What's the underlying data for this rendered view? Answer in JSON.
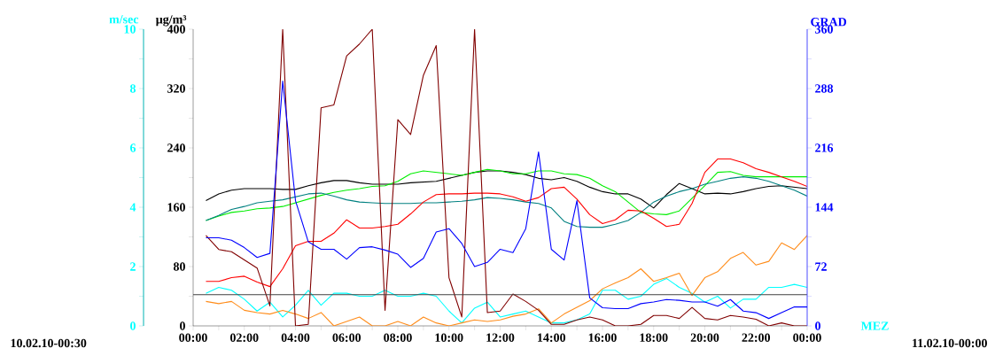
{
  "chart_data": {
    "type": "line",
    "xlabel": "MEZ",
    "ylabel": "µg/m³",
    "y2label": "GRAD",
    "y3label": "m/sec",
    "annotations": [
      "10.02.10-00:30",
      "11.02.10-00:00"
    ],
    "x": [
      0.5,
      1,
      1.5,
      2,
      2.5,
      3,
      3.5,
      4,
      4.5,
      5,
      5.5,
      6,
      6.5,
      7,
      7.5,
      8,
      8.5,
      9,
      9.5,
      10,
      10.5,
      11,
      11.5,
      12,
      12.5,
      13,
      13.5,
      14,
      14.5,
      15,
      15.5,
      16,
      16.5,
      17,
      17.5,
      18,
      18.5,
      19,
      19.5,
      20,
      20.5,
      21,
      21.5,
      22,
      22.5,
      23,
      23.5,
      24
    ],
    "xlim": [
      0,
      24
    ],
    "xticks": [
      {
        "value": 0,
        "label": "00:00"
      },
      {
        "value": 1,
        "label": null
      },
      {
        "value": 2,
        "label": "02:00"
      },
      {
        "value": 3,
        "label": null
      },
      {
        "value": 4,
        "label": "04:00"
      },
      {
        "value": 5,
        "label": null
      },
      {
        "value": 6,
        "label": "06:00"
      },
      {
        "value": 7,
        "label": null
      },
      {
        "value": 8,
        "label": "08:00"
      },
      {
        "value": 9,
        "label": null
      },
      {
        "value": 10,
        "label": "10:00"
      },
      {
        "value": 11,
        "label": null
      },
      {
        "value": 12,
        "label": "12:00"
      },
      {
        "value": 13,
        "label": null
      },
      {
        "value": 14,
        "label": "14:00"
      },
      {
        "value": 15,
        "label": null
      },
      {
        "value": 16,
        "label": "16:00"
      },
      {
        "value": 17,
        "label": null
      },
      {
        "value": 18,
        "label": "18:00"
      },
      {
        "value": 19,
        "label": null
      },
      {
        "value": 20,
        "label": "20:00"
      },
      {
        "value": 21,
        "label": null
      },
      {
        "value": 22,
        "label": "22:00"
      },
      {
        "value": 23,
        "label": null
      },
      {
        "value": 24,
        "label": "00:00"
      }
    ],
    "ylim": [
      0,
      400
    ],
    "yticks": [
      0,
      {
        "value": 40,
        "label": null
      },
      80,
      {
        "value": 120,
        "label": null
      },
      160,
      {
        "value": 200,
        "label": null
      },
      240,
      {
        "value": 280,
        "label": null
      },
      320,
      {
        "value": 360,
        "label": null
      },
      400
    ],
    "y2lim": [
      0,
      360
    ],
    "y2ticks": [
      0,
      {
        "value": 36,
        "label": null
      },
      72,
      {
        "value": 108,
        "label": null
      },
      144,
      {
        "value": 180,
        "label": null
      },
      216,
      {
        "value": 252,
        "label": null
      },
      288,
      {
        "value": 324,
        "label": null
      },
      360
    ],
    "y3lim": [
      0,
      10
    ],
    "y3ticks": [
      0,
      {
        "value": 1,
        "label": null
      },
      2,
      {
        "value": 3,
        "label": null
      },
      4,
      {
        "value": 5,
        "label": null
      },
      6,
      {
        "value": 7,
        "label": null
      },
      8,
      {
        "value": 9,
        "label": null
      },
      10
    ],
    "ref_lines": [
      {
        "axis": "y",
        "value": 42,
        "color": "#404040"
      }
    ],
    "series": [
      {
        "color": "#000000",
        "values": [
          169,
          178,
          183,
          185,
          185,
          185,
          184,
          184,
          189,
          193,
          196,
          196,
          193,
          191,
          191,
          191,
          193,
          194,
          195,
          199,
          203,
          207,
          209,
          209,
          207,
          204,
          199,
          197,
          200,
          195,
          187,
          181,
          178,
          178,
          171,
          159,
          177,
          192,
          185,
          178,
          179,
          178,
          181,
          185,
          188,
          189,
          187,
          185
        ]
      },
      {
        "color": "#00ee00",
        "values": [
          142,
          148,
          153,
          155,
          158,
          159,
          161,
          166,
          171,
          176,
          180,
          183,
          185,
          188,
          189,
          195,
          205,
          209,
          207,
          205,
          203,
          207,
          211,
          209,
          205,
          205,
          209,
          209,
          205,
          204,
          199,
          189,
          181,
          167,
          153,
          151,
          150,
          155,
          172,
          189,
          207,
          208,
          203,
          201,
          201,
          201,
          201,
          201
        ]
      },
      {
        "color": "#008080",
        "values": [
          142,
          149,
          157,
          161,
          166,
          168,
          170,
          174,
          178,
          179,
          175,
          170,
          167,
          166,
          165,
          165,
          165,
          166,
          166,
          167,
          168,
          170,
          173,
          172,
          170,
          167,
          165,
          159,
          141,
          134,
          133,
          133,
          137,
          142,
          153,
          167,
          175,
          181,
          185,
          191,
          195,
          199,
          201,
          199,
          195,
          189,
          183,
          175
        ]
      },
      {
        "color": "#ff0000",
        "values": [
          60,
          60,
          65,
          67,
          59,
          53,
          77,
          108,
          114,
          114,
          125,
          143,
          132,
          132,
          134,
          137,
          151,
          167,
          177,
          178,
          178,
          179,
          179,
          178,
          174,
          168,
          173,
          185,
          187,
          171,
          150,
          138,
          143,
          156,
          155,
          145,
          134,
          137,
          165,
          207,
          225,
          225,
          220,
          212,
          207,
          201,
          195,
          188
        ]
      },
      {
        "color": "#ff8c1a",
        "values": [
          33,
          30,
          33,
          21,
          18,
          16,
          21,
          16,
          10,
          18,
          0,
          6,
          12,
          0,
          0,
          6,
          0,
          12,
          4,
          0,
          4,
          8,
          6,
          8,
          13,
          16,
          23,
          4,
          16,
          25,
          34,
          50,
          58,
          65,
          77,
          60,
          65,
          71,
          41,
          65,
          73,
          91,
          99,
          82,
          87,
          112,
          103,
          122
        ]
      },
      {
        "color": "#800000",
        "values": [
          122,
          103,
          100,
          89,
          78,
          27,
          400,
          0,
          2,
          294,
          298,
          364,
          380,
          400,
          21,
          278,
          258,
          338,
          378,
          65,
          12,
          400,
          18,
          20,
          43,
          33,
          21,
          2,
          2,
          8,
          12,
          8,
          0,
          0,
          2,
          14,
          14,
          10,
          25,
          10,
          8,
          14,
          12,
          9,
          0,
          4,
          0,
          0
        ]
      },
      {
        "color": "#0000ff",
        "axis": "y2",
        "values": [
          107,
          107,
          104,
          95,
          83,
          88,
          297,
          152,
          102,
          93,
          93,
          81,
          95,
          96,
          92,
          87,
          71,
          82,
          114,
          118,
          100,
          72,
          77,
          93,
          89,
          118,
          211,
          93,
          80,
          152,
          34,
          22,
          21,
          21,
          27,
          29,
          32,
          31,
          29,
          29,
          24,
          32,
          18,
          16,
          9,
          16,
          23,
          23
        ]
      },
      {
        "color": "#00ffff",
        "axis": "y3",
        "values": [
          1.1,
          1.3,
          1.2,
          0.9,
          0.5,
          0.8,
          0.3,
          0.7,
          1.2,
          0.7,
          1.1,
          1.1,
          1.0,
          1.0,
          1.2,
          1.0,
          1.0,
          1.1,
          1.0,
          0.5,
          0.1,
          0.6,
          0.8,
          0.3,
          0.4,
          0.5,
          0.3,
          0.1,
          0.1,
          0.2,
          0.4,
          1.2,
          1.2,
          0.9,
          1.0,
          1.4,
          1.6,
          1.3,
          1.1,
          0.8,
          1.0,
          0.6,
          0.9,
          0.9,
          1.3,
          1.3,
          1.4,
          1.3
        ]
      }
    ]
  }
}
